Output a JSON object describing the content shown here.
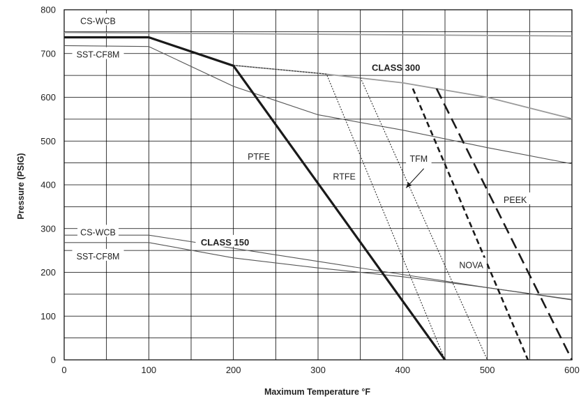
{
  "chart_data": {
    "type": "line",
    "xlabel": "Maximum Temperature °F",
    "ylabel": "Pressure (PSIG)",
    "xlim": [
      0,
      600
    ],
    "ylim": [
      0,
      800
    ],
    "x_ticks": [
      0,
      100,
      200,
      300,
      400,
      500,
      600
    ],
    "y_ticks": [
      0,
      100,
      200,
      300,
      400,
      500,
      600,
      700,
      800
    ],
    "grid": true,
    "colors": {
      "heavy": "#1a1a1a",
      "medium": "#555555",
      "light": "#9a9a9a",
      "band": "#cccccc"
    },
    "series": [
      {
        "name": "CS-WCB",
        "style": "light",
        "points": [
          [
            0,
            748
          ],
          [
            600,
            740
          ]
        ]
      },
      {
        "name": "SST-CF8M",
        "style": "medium",
        "points": [
          [
            0,
            718
          ],
          [
            100,
            716
          ],
          [
            200,
            625
          ],
          [
            300,
            560
          ],
          [
            400,
            525
          ],
          [
            500,
            485
          ],
          [
            600,
            448
          ]
        ]
      },
      {
        "name": "CLASS 300",
        "style": "light",
        "points": [
          [
            200,
            673
          ],
          [
            300,
            655
          ],
          [
            400,
            633
          ],
          [
            500,
            600
          ],
          [
            600,
            551
          ]
        ]
      },
      {
        "name": "CS-WCB",
        "style": "medium",
        "points": [
          [
            0,
            285
          ],
          [
            100,
            285
          ],
          [
            200,
            255
          ],
          [
            300,
            225
          ],
          [
            400,
            195
          ],
          [
            500,
            165
          ],
          [
            600,
            138
          ]
        ]
      },
      {
        "name": "SST-CF8M",
        "style": "medium",
        "points": [
          [
            0,
            268
          ],
          [
            100,
            268
          ],
          [
            200,
            233
          ],
          [
            300,
            210
          ],
          [
            400,
            190
          ],
          [
            500,
            165
          ],
          [
            600,
            137
          ]
        ]
      },
      {
        "name": "PTFE",
        "style": "heavy",
        "points": [
          [
            0,
            737
          ],
          [
            100,
            737
          ],
          [
            200,
            672
          ],
          [
            450,
            0
          ]
        ]
      },
      {
        "name": "RTFE",
        "style": "dotted",
        "points": [
          [
            200,
            673
          ],
          [
            310,
            653
          ],
          [
            450,
            0
          ]
        ]
      },
      {
        "name": "TFM",
        "style": "dotted",
        "points": [
          [
            350,
            645
          ],
          [
            500,
            0
          ]
        ]
      },
      {
        "name": "NOVA",
        "style": "short-dash",
        "points": [
          [
            412,
            620
          ],
          [
            548,
            0
          ]
        ]
      },
      {
        "name": "PEEK",
        "style": "long-dash",
        "points": [
          [
            440,
            620
          ],
          [
            600,
            0
          ]
        ]
      }
    ],
    "labels": {
      "cs_wcb_top": "CS-WCB",
      "sst_top": "SST-CF8M",
      "class300": "CLASS 300",
      "class150": "CLASS 150",
      "cs_wcb_low": "CS-WCB",
      "sst_low": "SST-CF8M",
      "ptfe": "PTFE",
      "rtfe": "RTFE",
      "tfm": "TFM",
      "peek": "PEEK",
      "nova": "NOVA"
    }
  }
}
